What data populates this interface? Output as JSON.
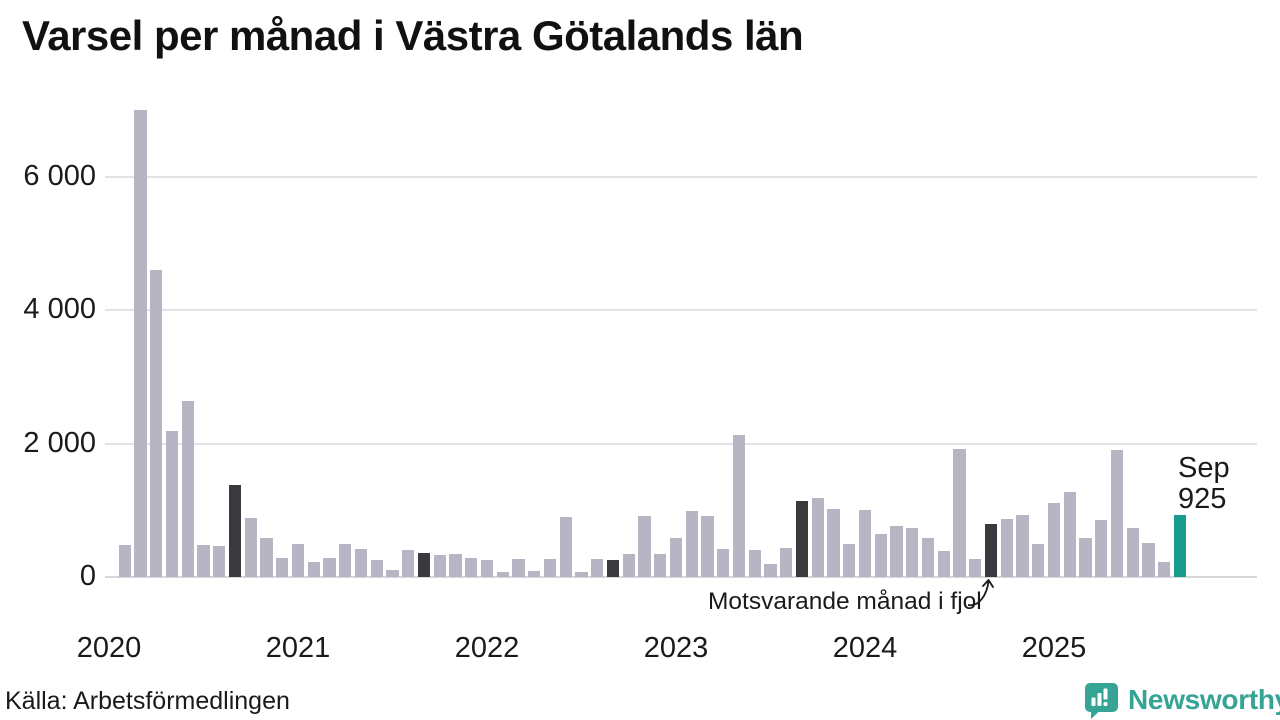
{
  "header": {
    "title": "Varsel per månad i Västra Götalands län"
  },
  "annotation": {
    "fjol_label": "Motsvarande månad i fjol",
    "current_month": "Sep",
    "current_value": "925"
  },
  "footer": {
    "source": "Källa: Arbetsförmedlingen",
    "brand_name": "Newsworthy"
  },
  "colors": {
    "bar_normal": "#b7b4c3",
    "bar_fjol": "#3b383e",
    "bar_current": "#199c8e",
    "grid": "#e2e2e7",
    "axis": "#d6d6db",
    "text": "#1a1a1a",
    "brand": "#36a495"
  },
  "chart_data": {
    "type": "bar",
    "title": "Varsel per månad i Västra Götalands län",
    "xlabel": "",
    "ylabel": "",
    "ylim": [
      0,
      7200
    ],
    "grid": "horizontal",
    "yticks": [
      {
        "value": 0,
        "label": "0"
      },
      {
        "value": 2000,
        "label": "2 000"
      },
      {
        "value": 4000,
        "label": "4 000"
      },
      {
        "value": 6000,
        "label": "6 000"
      }
    ],
    "year_labels": [
      "2020",
      "2021",
      "2022",
      "2023",
      "2024",
      "2025"
    ],
    "months": [
      "2020-02",
      "2020-03",
      "2020-04",
      "2020-05",
      "2020-06",
      "2020-07",
      "2020-08",
      "2020-09",
      "2020-10",
      "2020-11",
      "2020-12",
      "2021-01",
      "2021-02",
      "2021-03",
      "2021-04",
      "2021-05",
      "2021-06",
      "2021-07",
      "2021-08",
      "2021-09",
      "2021-10",
      "2021-11",
      "2021-12",
      "2022-01",
      "2022-02",
      "2022-03",
      "2022-04",
      "2022-05",
      "2022-06",
      "2022-07",
      "2022-08",
      "2022-09",
      "2022-10",
      "2022-11",
      "2022-12",
      "2023-01",
      "2023-02",
      "2023-03",
      "2023-04",
      "2023-05",
      "2023-06",
      "2023-07",
      "2023-08",
      "2023-09",
      "2023-10",
      "2023-11",
      "2023-12",
      "2024-01",
      "2024-02",
      "2024-03",
      "2024-04",
      "2024-05",
      "2024-06",
      "2024-07",
      "2024-08",
      "2024-09",
      "2024-10",
      "2024-11",
      "2024-12",
      "2025-01",
      "2025-02",
      "2025-03",
      "2025-04",
      "2025-05",
      "2025-06",
      "2025-07",
      "2025-08",
      "2025-09"
    ],
    "values": [
      480,
      7000,
      4600,
      2180,
      2640,
      480,
      470,
      1380,
      880,
      590,
      280,
      490,
      220,
      290,
      490,
      420,
      260,
      110,
      400,
      360,
      330,
      350,
      280,
      250,
      75,
      270,
      85,
      265,
      900,
      80,
      275,
      260,
      340,
      920,
      340,
      580,
      990,
      915,
      425,
      2130,
      400,
      200,
      440,
      1140,
      1180,
      1020,
      490,
      1000,
      640,
      765,
      730,
      580,
      390,
      1915,
      265,
      800,
      865,
      930,
      490,
      1115,
      1280,
      580,
      860,
      1900,
      740,
      510,
      225,
      925
    ],
    "fjol_indices": [
      7,
      19,
      31,
      43,
      55
    ],
    "current_index": 67,
    "legend_note": "Dark bars = Motsvarande månad i fjol; teal bar = Sep 2025 (925)"
  }
}
